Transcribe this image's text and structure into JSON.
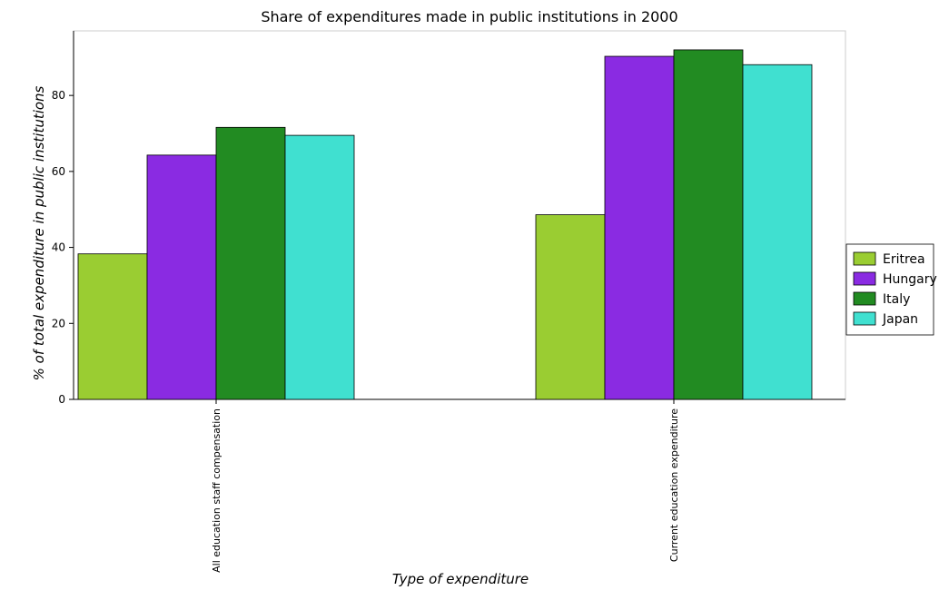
{
  "chart_data": {
    "type": "bar",
    "title": "Share of expenditures made in public institutions in 2000",
    "xlabel": "Type of expenditure",
    "ylabel": "% of total expenditure in public institutions",
    "categories": [
      "All education staff compensation",
      "Current education expenditure"
    ],
    "series": [
      {
        "name": "Eritrea",
        "color": "#9acd32",
        "values": [
          38.3,
          48.6
        ]
      },
      {
        "name": "Hungary",
        "color": "#8a2be2",
        "values": [
          64.3,
          90.3
        ]
      },
      {
        "name": "Italy",
        "color": "#228b22",
        "values": [
          71.6,
          92.0
        ]
      },
      {
        "name": "Japan",
        "color": "#40e0d0",
        "values": [
          69.5,
          88.1
        ]
      }
    ],
    "ylim": [
      0,
      97
    ],
    "yticks": [
      0,
      20,
      40,
      60,
      80
    ],
    "grid": false,
    "legend_position": "right"
  }
}
